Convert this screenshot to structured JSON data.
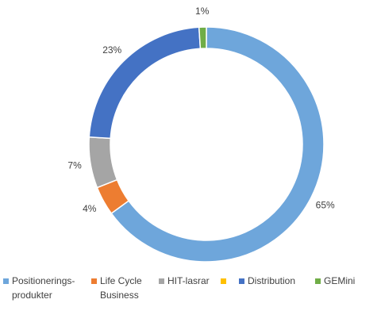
{
  "chart_data": {
    "type": "pie",
    "variant": "donut",
    "categories": [
      "Positionerings-\nprodukter",
      "Life Cycle\nBusiness",
      "HIT-lasrar",
      "",
      "Distribution",
      "GEMini"
    ],
    "values": [
      65,
      4,
      7,
      0,
      23,
      1
    ],
    "labels": [
      "65%",
      "4%",
      "7%",
      "",
      "23%",
      "1%"
    ],
    "colors": [
      "#6EA6DB",
      "#ED7D31",
      "#A5A5A5",
      "#FFC000",
      "#4472C4",
      "#70AD47"
    ],
    "legend_position": "bottom",
    "title": ""
  }
}
